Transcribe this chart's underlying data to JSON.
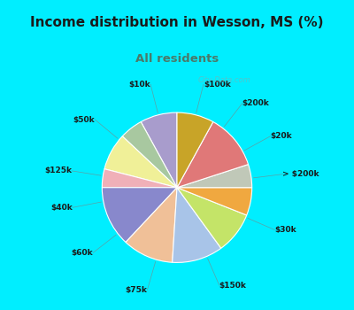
{
  "title": "Income distribution in Wesson, MS (%)",
  "subtitle": "All residents",
  "title_color": "#1a1a1a",
  "subtitle_color": "#4a7a6a",
  "bg_top": "#00eeff",
  "bg_chart": "#e0f2ea",
  "watermark": "City-Data.com",
  "labels": [
    "$100k",
    "$200k",
    "$20k",
    "> $200k",
    "$30k",
    "$150k",
    "$75k",
    "$60k",
    "$40k",
    "$125k",
    "$50k",
    "$10k"
  ],
  "values": [
    8,
    5,
    8,
    4,
    13,
    11,
    11,
    9,
    6,
    5,
    12,
    8
  ],
  "colors": [
    "#a89ccc",
    "#a8c8a0",
    "#f0f098",
    "#f0b0b8",
    "#8888cc",
    "#f0c098",
    "#a8c4e8",
    "#c4e468",
    "#f0a840",
    "#c0c8b8",
    "#e07878",
    "#c8a428"
  ]
}
